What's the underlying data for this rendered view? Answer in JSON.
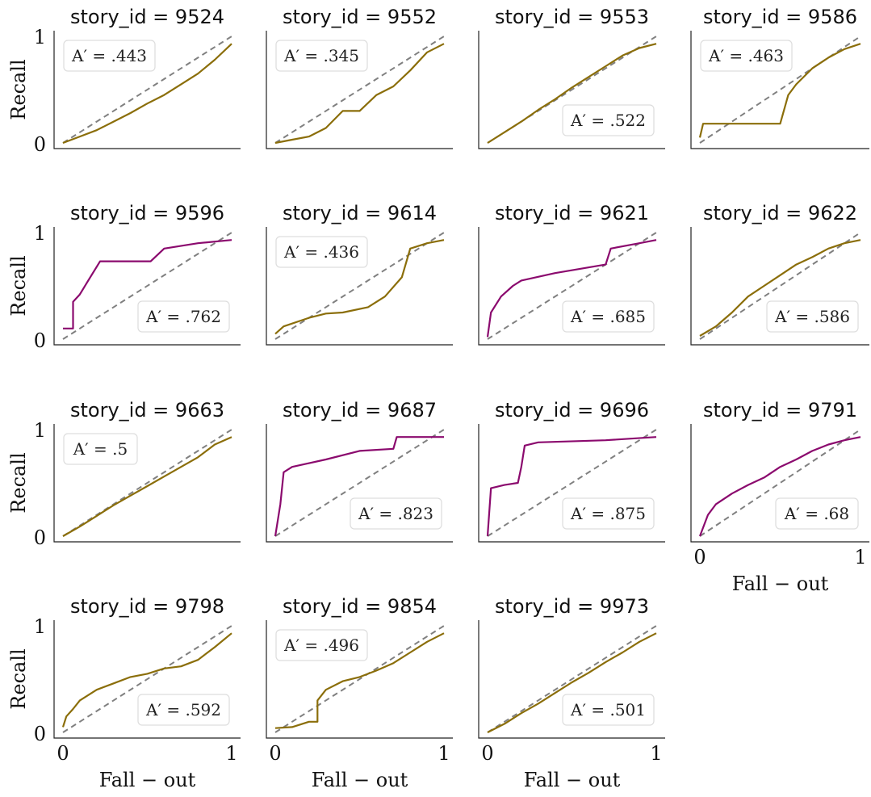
{
  "colors": {
    "below": "#8B6E0A",
    "above": "#8B0A6E",
    "chance": "#808080"
  },
  "chart_data": {
    "type": "line",
    "grid": false,
    "ylabel": "Recall",
    "xlabel": "Fall − out",
    "tick_labels": {
      "zero": "0",
      "one": "1"
    },
    "xlim": [
      0,
      1
    ],
    "ylim": [
      0,
      1
    ],
    "panels": [
      {
        "title": "story_id = 9524",
        "annotation": "A′ = .443",
        "ann_pos": "top-left",
        "group": "below",
        "points": [
          [
            0,
            0
          ],
          [
            0.1,
            0.06
          ],
          [
            0.2,
            0.12
          ],
          [
            0.3,
            0.2
          ],
          [
            0.4,
            0.28
          ],
          [
            0.5,
            0.37
          ],
          [
            0.6,
            0.45
          ],
          [
            0.7,
            0.55
          ],
          [
            0.8,
            0.65
          ],
          [
            0.9,
            0.78
          ],
          [
            1,
            0.93
          ]
        ]
      },
      {
        "title": "story_id = 9552",
        "annotation": "A′ = .345",
        "ann_pos": "top-left",
        "group": "below",
        "points": [
          [
            0,
            0
          ],
          [
            0.1,
            0.03
          ],
          [
            0.2,
            0.06
          ],
          [
            0.3,
            0.14
          ],
          [
            0.4,
            0.3
          ],
          [
            0.5,
            0.3
          ],
          [
            0.6,
            0.45
          ],
          [
            0.7,
            0.53
          ],
          [
            0.8,
            0.68
          ],
          [
            0.9,
            0.85
          ],
          [
            1,
            0.93
          ]
        ]
      },
      {
        "title": "story_id = 9553",
        "annotation": "A′ = .522",
        "ann_pos": "bottom-right",
        "group": "below",
        "points": [
          [
            0,
            0
          ],
          [
            0.1,
            0.1
          ],
          [
            0.2,
            0.2
          ],
          [
            0.3,
            0.31
          ],
          [
            0.4,
            0.41
          ],
          [
            0.5,
            0.52
          ],
          [
            0.6,
            0.62
          ],
          [
            0.7,
            0.72
          ],
          [
            0.8,
            0.82
          ],
          [
            0.9,
            0.89
          ],
          [
            1,
            0.93
          ]
        ]
      },
      {
        "title": "story_id = 9586",
        "annotation": "A′ = .463",
        "ann_pos": "top-left",
        "group": "below",
        "points": [
          [
            0,
            0.05
          ],
          [
            0.02,
            0.18
          ],
          [
            0.5,
            0.18
          ],
          [
            0.55,
            0.45
          ],
          [
            0.6,
            0.55
          ],
          [
            0.7,
            0.7
          ],
          [
            0.8,
            0.8
          ],
          [
            0.9,
            0.88
          ],
          [
            1,
            0.93
          ]
        ]
      },
      {
        "title": "story_id = 9596",
        "annotation": "A′ = .762",
        "ann_pos": "bottom-right",
        "group": "above",
        "points": [
          [
            0,
            0.1
          ],
          [
            0.06,
            0.1
          ],
          [
            0.06,
            0.35
          ],
          [
            0.1,
            0.42
          ],
          [
            0.15,
            0.55
          ],
          [
            0.22,
            0.73
          ],
          [
            0.52,
            0.73
          ],
          [
            0.6,
            0.85
          ],
          [
            0.8,
            0.9
          ],
          [
            1,
            0.93
          ]
        ]
      },
      {
        "title": "story_id = 9614",
        "annotation": "A′ = .436",
        "ann_pos": "top-left",
        "group": "below",
        "points": [
          [
            0,
            0.05
          ],
          [
            0.05,
            0.12
          ],
          [
            0.2,
            0.2
          ],
          [
            0.3,
            0.24
          ],
          [
            0.4,
            0.25
          ],
          [
            0.55,
            0.3
          ],
          [
            0.65,
            0.4
          ],
          [
            0.75,
            0.58
          ],
          [
            0.8,
            0.85
          ],
          [
            0.9,
            0.9
          ],
          [
            1,
            0.93
          ]
        ]
      },
      {
        "title": "story_id = 9621",
        "annotation": "A′ = .685",
        "ann_pos": "bottom-right",
        "group": "above",
        "points": [
          [
            0,
            0.02
          ],
          [
            0.02,
            0.25
          ],
          [
            0.08,
            0.4
          ],
          [
            0.15,
            0.5
          ],
          [
            0.2,
            0.55
          ],
          [
            0.4,
            0.62
          ],
          [
            0.7,
            0.7
          ],
          [
            0.73,
            0.85
          ],
          [
            0.9,
            0.9
          ],
          [
            1,
            0.93
          ]
        ]
      },
      {
        "title": "story_id = 9622",
        "annotation": "A′ = .586",
        "ann_pos": "bottom-right",
        "group": "below",
        "points": [
          [
            0,
            0.03
          ],
          [
            0.1,
            0.12
          ],
          [
            0.2,
            0.25
          ],
          [
            0.3,
            0.4
          ],
          [
            0.4,
            0.5
          ],
          [
            0.5,
            0.6
          ],
          [
            0.6,
            0.7
          ],
          [
            0.7,
            0.77
          ],
          [
            0.8,
            0.85
          ],
          [
            0.9,
            0.9
          ],
          [
            1,
            0.93
          ]
        ]
      },
      {
        "title": "story_id = 9663",
        "annotation": "A′ = .5",
        "ann_pos": "top-left",
        "group": "below",
        "points": [
          [
            0,
            0
          ],
          [
            0.1,
            0.09
          ],
          [
            0.2,
            0.19
          ],
          [
            0.3,
            0.29
          ],
          [
            0.4,
            0.38
          ],
          [
            0.5,
            0.47
          ],
          [
            0.6,
            0.56
          ],
          [
            0.7,
            0.65
          ],
          [
            0.8,
            0.74
          ],
          [
            0.9,
            0.86
          ],
          [
            1,
            0.93
          ]
        ]
      },
      {
        "title": "story_id = 9687",
        "annotation": "A′ = .823",
        "ann_pos": "bottom-right",
        "group": "above",
        "points": [
          [
            0,
            0
          ],
          [
            0.03,
            0.3
          ],
          [
            0.05,
            0.6
          ],
          [
            0.1,
            0.65
          ],
          [
            0.3,
            0.72
          ],
          [
            0.5,
            0.8
          ],
          [
            0.7,
            0.82
          ],
          [
            0.72,
            0.93
          ],
          [
            1,
            0.93
          ]
        ]
      },
      {
        "title": "story_id = 9696",
        "annotation": "A′ = .875",
        "ann_pos": "bottom-right",
        "group": "above",
        "points": [
          [
            0,
            0
          ],
          [
            0.02,
            0.45
          ],
          [
            0.1,
            0.48
          ],
          [
            0.18,
            0.5
          ],
          [
            0.2,
            0.65
          ],
          [
            0.22,
            0.85
          ],
          [
            0.3,
            0.88
          ],
          [
            0.7,
            0.9
          ],
          [
            1,
            0.93
          ]
        ]
      },
      {
        "title": "story_id = 9791",
        "annotation": "A′ = .68",
        "ann_pos": "bottom-right",
        "group": "above",
        "points": [
          [
            0,
            0
          ],
          [
            0.05,
            0.2
          ],
          [
            0.1,
            0.3
          ],
          [
            0.2,
            0.4
          ],
          [
            0.3,
            0.48
          ],
          [
            0.4,
            0.55
          ],
          [
            0.5,
            0.65
          ],
          [
            0.6,
            0.72
          ],
          [
            0.7,
            0.8
          ],
          [
            0.8,
            0.86
          ],
          [
            0.9,
            0.9
          ],
          [
            1,
            0.93
          ]
        ]
      },
      {
        "title": "story_id = 9798",
        "annotation": "A′ = .592",
        "ann_pos": "bottom-right",
        "group": "below",
        "points": [
          [
            0,
            0.05
          ],
          [
            0.02,
            0.15
          ],
          [
            0.06,
            0.22
          ],
          [
            0.1,
            0.3
          ],
          [
            0.2,
            0.4
          ],
          [
            0.3,
            0.46
          ],
          [
            0.4,
            0.52
          ],
          [
            0.5,
            0.55
          ],
          [
            0.6,
            0.6
          ],
          [
            0.7,
            0.62
          ],
          [
            0.8,
            0.68
          ],
          [
            0.9,
            0.8
          ],
          [
            1,
            0.93
          ]
        ]
      },
      {
        "title": "story_id = 9854",
        "annotation": "A′ = .496",
        "ann_pos": "top-left",
        "group": "below",
        "points": [
          [
            0,
            0.04
          ],
          [
            0.1,
            0.05
          ],
          [
            0.2,
            0.1
          ],
          [
            0.25,
            0.1
          ],
          [
            0.25,
            0.3
          ],
          [
            0.3,
            0.4
          ],
          [
            0.4,
            0.48
          ],
          [
            0.5,
            0.52
          ],
          [
            0.6,
            0.58
          ],
          [
            0.7,
            0.65
          ],
          [
            0.8,
            0.75
          ],
          [
            0.9,
            0.85
          ],
          [
            1,
            0.93
          ]
        ]
      },
      {
        "title": "story_id = 9973",
        "annotation": "A′ = .501",
        "ann_pos": "bottom-right",
        "group": "below",
        "points": [
          [
            0,
            0
          ],
          [
            0.1,
            0.08
          ],
          [
            0.2,
            0.18
          ],
          [
            0.3,
            0.27
          ],
          [
            0.4,
            0.37
          ],
          [
            0.5,
            0.47
          ],
          [
            0.6,
            0.56
          ],
          [
            0.7,
            0.66
          ],
          [
            0.8,
            0.75
          ],
          [
            0.9,
            0.85
          ],
          [
            1,
            0.93
          ]
        ]
      }
    ]
  }
}
